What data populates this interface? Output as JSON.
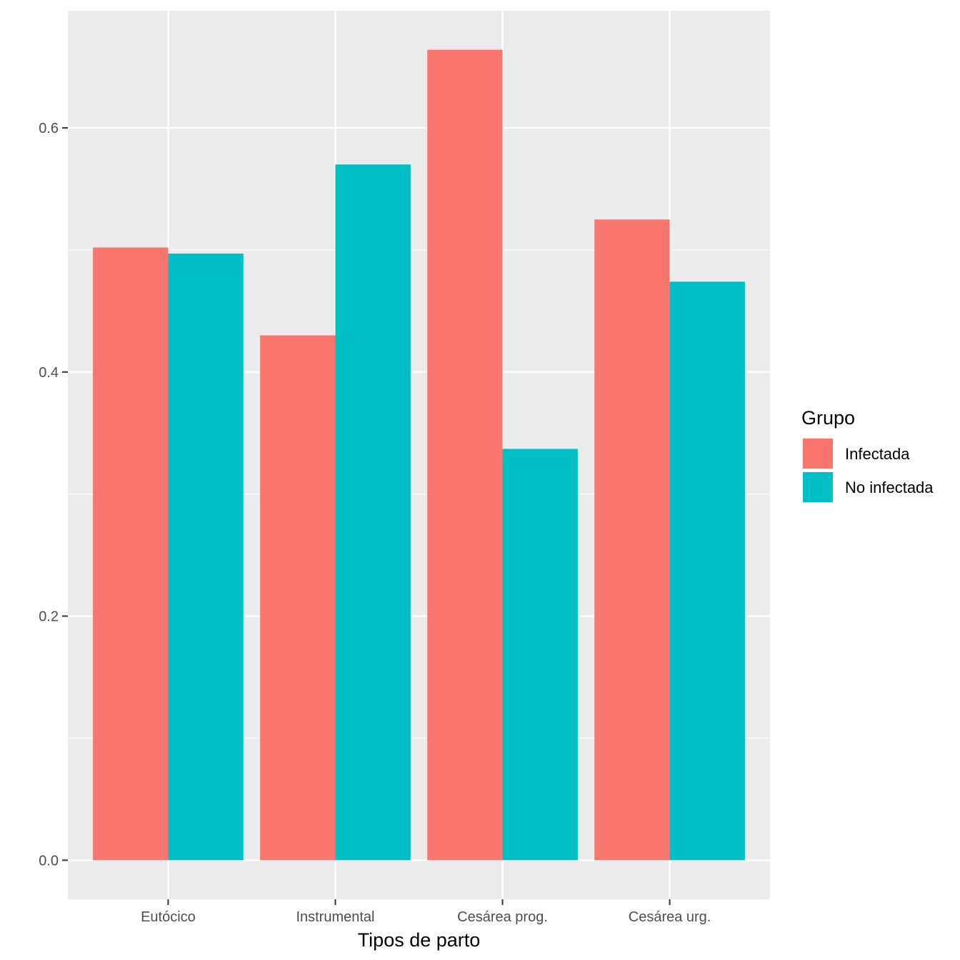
{
  "chart_data": {
    "type": "bar",
    "title": "",
    "xlabel": "Tipos de parto",
    "ylabel": "",
    "categories": [
      "Eutócico",
      "Instrumental",
      "Cesárea prog.",
      "Cesárea urg."
    ],
    "series": [
      {
        "name": "Infectada",
        "color": "#F8766D",
        "values": [
          0.502,
          0.43,
          0.664,
          0.525
        ]
      },
      {
        "name": "No infectada",
        "color": "#00BFC4",
        "values": [
          0.497,
          0.57,
          0.337,
          0.474
        ]
      }
    ],
    "ylim": [
      -0.032,
      0.696
    ],
    "yticks": [
      0.0,
      0.2,
      0.4,
      0.6
    ],
    "ytick_labels": [
      "0.0",
      "0.2",
      "0.4",
      "0.6"
    ],
    "grid": true,
    "panel_background": "#EBEBEB",
    "legend": {
      "title": "Grupo",
      "position": "right"
    }
  }
}
